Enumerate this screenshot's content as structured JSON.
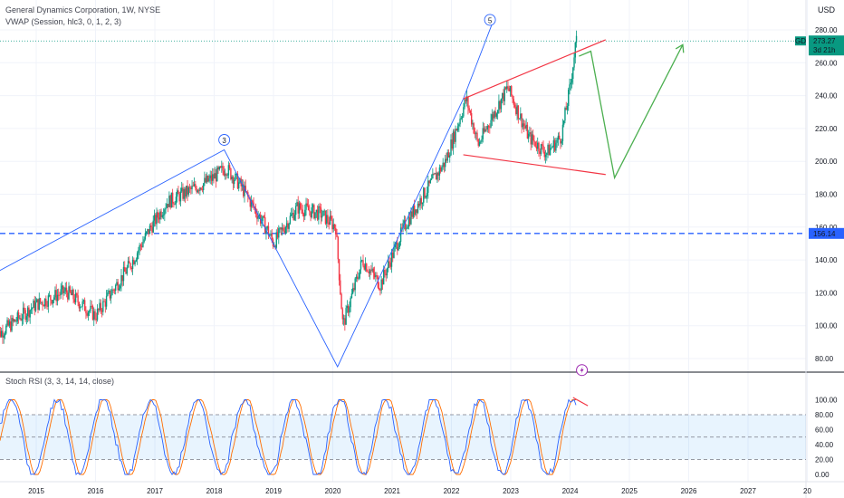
{
  "header": {
    "title": "General Dynamics Corporation, 1W, NYSE",
    "indicator": "VWAP (Session, hlc3, 0, 1, 2, 3)",
    "currency": "USD"
  },
  "price_tag": {
    "symbol": "GD",
    "price": "273.27",
    "countdown": "3d 21h",
    "color": "#089981"
  },
  "level_tag": {
    "value": "156.14",
    "color": "#2962ff"
  },
  "wave_labels": [
    "3",
    "5"
  ],
  "chart_data": [
    {
      "type": "candlestick",
      "title": "General Dynamics Corporation, 1W, NYSE",
      "x_labels": [
        "2015",
        "2016",
        "2017",
        "2018",
        "2019",
        "2020",
        "2021",
        "2022",
        "2023",
        "2024",
        "2025",
        "2026",
        "2027",
        "20"
      ],
      "y_ticks": [
        80,
        100,
        120,
        140,
        160,
        180,
        200,
        220,
        240,
        260,
        280
      ],
      "ylim": [
        70,
        292
      ],
      "up_color": "#089981",
      "down_color": "#f23645",
      "key_points": [
        {
          "t": 2014.3,
          "p": 93
        },
        {
          "t": 2015.0,
          "p": 113
        },
        {
          "t": 2015.5,
          "p": 121
        },
        {
          "t": 2016.0,
          "p": 106
        },
        {
          "t": 2016.6,
          "p": 138
        },
        {
          "t": 2016.9,
          "p": 158
        },
        {
          "t": 2017.2,
          "p": 175
        },
        {
          "t": 2017.9,
          "p": 188
        },
        {
          "t": 2018.2,
          "p": 196
        },
        {
          "t": 2018.45,
          "p": 185
        },
        {
          "t": 2018.9,
          "p": 158
        },
        {
          "t": 2019.0,
          "p": 150
        },
        {
          "t": 2019.4,
          "p": 172
        },
        {
          "t": 2019.8,
          "p": 168
        },
        {
          "t": 2020.05,
          "p": 160
        },
        {
          "t": 2020.17,
          "p": 100
        },
        {
          "t": 2020.5,
          "p": 140
        },
        {
          "t": 2020.8,
          "p": 125
        },
        {
          "t": 2021.2,
          "p": 160
        },
        {
          "t": 2021.5,
          "p": 178
        },
        {
          "t": 2021.9,
          "p": 200
        },
        {
          "t": 2022.25,
          "p": 238
        },
        {
          "t": 2022.45,
          "p": 210
        },
        {
          "t": 2022.7,
          "p": 228
        },
        {
          "t": 2022.95,
          "p": 245
        },
        {
          "t": 2023.3,
          "p": 215
        },
        {
          "t": 2023.6,
          "p": 205
        },
        {
          "t": 2023.85,
          "p": 215
        },
        {
          "t": 2024.0,
          "p": 245
        },
        {
          "t": 2024.2,
          "p": 265
        },
        {
          "t": 2024.1,
          "p": 273
        }
      ],
      "horizontal_level": 156.14,
      "wave_trendline": [
        {
          "t": 2014.2,
          "p": 130
        },
        {
          "t": 2018.17,
          "p": 207
        },
        {
          "t": 2020.08,
          "p": 75
        },
        {
          "t": 2022.2,
          "p": 238
        },
        {
          "t": 2022.7,
          "p": 285
        }
      ],
      "channel_upper": [
        {
          "t": 2022.2,
          "p": 238
        },
        {
          "t": 2024.6,
          "p": 274
        }
      ],
      "channel_lower": [
        {
          "t": 2022.2,
          "p": 204
        },
        {
          "t": 2024.6,
          "p": 192
        }
      ],
      "projection": [
        {
          "t": 2024.15,
          "p": 264
        },
        {
          "t": 2024.35,
          "p": 267
        },
        {
          "t": 2024.75,
          "p": 190
        },
        {
          "t": 2025.9,
          "p": 271
        }
      ],
      "marker_level": 273.27
    },
    {
      "type": "line",
      "title": "Stoch RSI (3, 3, 14, 14, close)",
      "y_ticks": [
        0,
        20,
        40,
        60,
        80,
        100
      ],
      "ylim": [
        -10,
        108
      ],
      "band": [
        20,
        80
      ],
      "series": [
        {
          "name": "K",
          "color": "#2962ff"
        },
        {
          "name": "D",
          "color": "#ff6d00"
        }
      ]
    }
  ]
}
